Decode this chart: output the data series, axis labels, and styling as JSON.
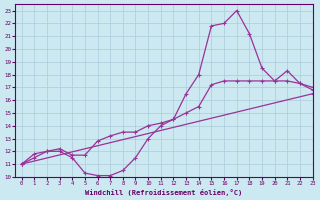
{
  "xlabel": "Windchill (Refroidissement éolien,°C)",
  "xlim": [
    -0.5,
    23
  ],
  "ylim": [
    10,
    23.5
  ],
  "xticks": [
    0,
    1,
    2,
    3,
    4,
    5,
    6,
    7,
    8,
    9,
    10,
    11,
    12,
    13,
    14,
    15,
    16,
    17,
    18,
    19,
    20,
    21,
    22,
    23
  ],
  "yticks": [
    10,
    11,
    12,
    13,
    14,
    15,
    16,
    17,
    18,
    19,
    20,
    21,
    22,
    23
  ],
  "background_color": "#cce8f0",
  "grid_color": "#aaccdd",
  "line_color": "#993399",
  "line1_x": [
    0,
    1,
    2,
    3,
    4,
    5,
    6,
    7,
    8,
    9,
    10,
    11,
    12,
    13,
    14,
    15,
    16,
    17,
    18,
    19,
    20,
    21,
    22,
    23
  ],
  "line1_y": [
    11,
    11.8,
    12.0,
    12.0,
    11.5,
    10.3,
    10.1,
    10.1,
    10.5,
    11.5,
    13.0,
    14.0,
    14.5,
    16.5,
    18.0,
    21.8,
    22.0,
    23.0,
    21.2,
    18.5,
    17.5,
    18.3,
    17.3,
    16.8
  ],
  "line2_x": [
    0,
    1,
    2,
    3,
    4,
    5,
    6,
    7,
    8,
    9,
    10,
    11,
    12,
    13,
    14,
    15,
    16,
    17,
    18,
    19,
    20,
    21,
    22,
    23
  ],
  "line2_y": [
    11.0,
    11.5,
    12.0,
    12.2,
    11.7,
    11.7,
    12.8,
    13.2,
    13.5,
    13.5,
    14.0,
    14.2,
    14.5,
    15.0,
    15.5,
    17.2,
    17.5,
    17.5,
    17.5,
    17.5,
    17.5,
    17.5,
    17.3,
    17.0
  ],
  "line3_x": [
    0,
    23
  ],
  "line3_y": [
    11.0,
    16.5
  ]
}
